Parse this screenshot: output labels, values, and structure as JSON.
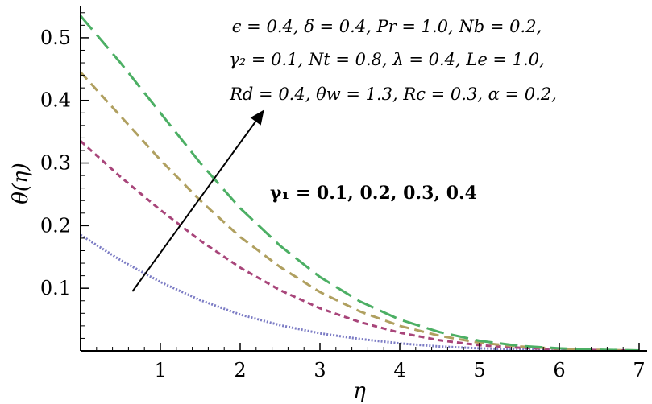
{
  "chart_data": {
    "type": "line",
    "xlabel": "η",
    "ylabel": "θ(η)",
    "xlim": [
      0,
      7
    ],
    "ylim": [
      0,
      0.55
    ],
    "x_ticks": [
      "1",
      "2",
      "3",
      "4",
      "5",
      "6",
      "7"
    ],
    "y_ticks": [
      "0.1",
      "0.2",
      "0.3",
      "0.4",
      "0.5"
    ],
    "x_tick_values": [
      1,
      2,
      3,
      4,
      5,
      6,
      7
    ],
    "y_tick_values": [
      0.1,
      0.2,
      0.3,
      0.4,
      0.5
    ],
    "grid": false,
    "parameter_lines": [
      "ϵ = 0.4,  δ = 0.4,  Pr = 1.0,  Nb = 0.2,",
      "γ₂  = 0.1,  Nt = 0.8,  λ = 0.4,  Le = 1.0,",
      "Rd = 0.4,  θw = 1.3,  Rc = 0.3,  α = 0.2,"
    ],
    "annotation": {
      "text": "γ₁ = 0.1, 0.2, 0.3, 0.4",
      "arrow_from": [
        0.65,
        0.095
      ],
      "arrow_to": [
        2.3,
        0.385
      ]
    },
    "series": [
      {
        "color": "#7b7bc4",
        "dash": "dotted",
        "x": [
          0,
          0.5,
          1,
          1.5,
          2,
          2.5,
          3,
          3.5,
          4,
          4.5,
          5,
          5.5,
          6,
          6.5,
          7
        ],
        "values": [
          0.185,
          0.145,
          0.11,
          0.081,
          0.058,
          0.041,
          0.028,
          0.019,
          0.012,
          0.007,
          0.004,
          0.0025,
          0.0015,
          0.0008,
          0.0004
        ]
      },
      {
        "color": "#a8457a",
        "dash": "short",
        "x": [
          0,
          0.5,
          1,
          1.5,
          2,
          2.5,
          3,
          3.5,
          4,
          4.5,
          5,
          5.5,
          6,
          6.5,
          7
        ],
        "values": [
          0.335,
          0.278,
          0.225,
          0.176,
          0.133,
          0.097,
          0.068,
          0.046,
          0.029,
          0.017,
          0.009,
          0.005,
          0.0025,
          0.0012,
          0.0005
        ]
      },
      {
        "color": "#b0a060",
        "dash": "medium",
        "x": [
          0,
          0.5,
          1,
          1.5,
          2,
          2.5,
          3,
          3.5,
          4,
          4.5,
          5,
          5.5,
          6,
          6.5,
          7
        ],
        "values": [
          0.445,
          0.375,
          0.305,
          0.24,
          0.182,
          0.134,
          0.094,
          0.063,
          0.04,
          0.024,
          0.013,
          0.007,
          0.0035,
          0.0015,
          0.0005
        ]
      },
      {
        "color": "#4caf64",
        "dash": "long",
        "x": [
          0,
          0.5,
          1,
          1.5,
          2,
          2.5,
          3,
          3.5,
          4,
          4.5,
          5,
          5.5,
          6,
          6.5,
          7
        ],
        "values": [
          0.535,
          0.46,
          0.38,
          0.3,
          0.228,
          0.168,
          0.118,
          0.079,
          0.05,
          0.03,
          0.016,
          0.008,
          0.004,
          0.0018,
          0.0006
        ]
      }
    ]
  }
}
